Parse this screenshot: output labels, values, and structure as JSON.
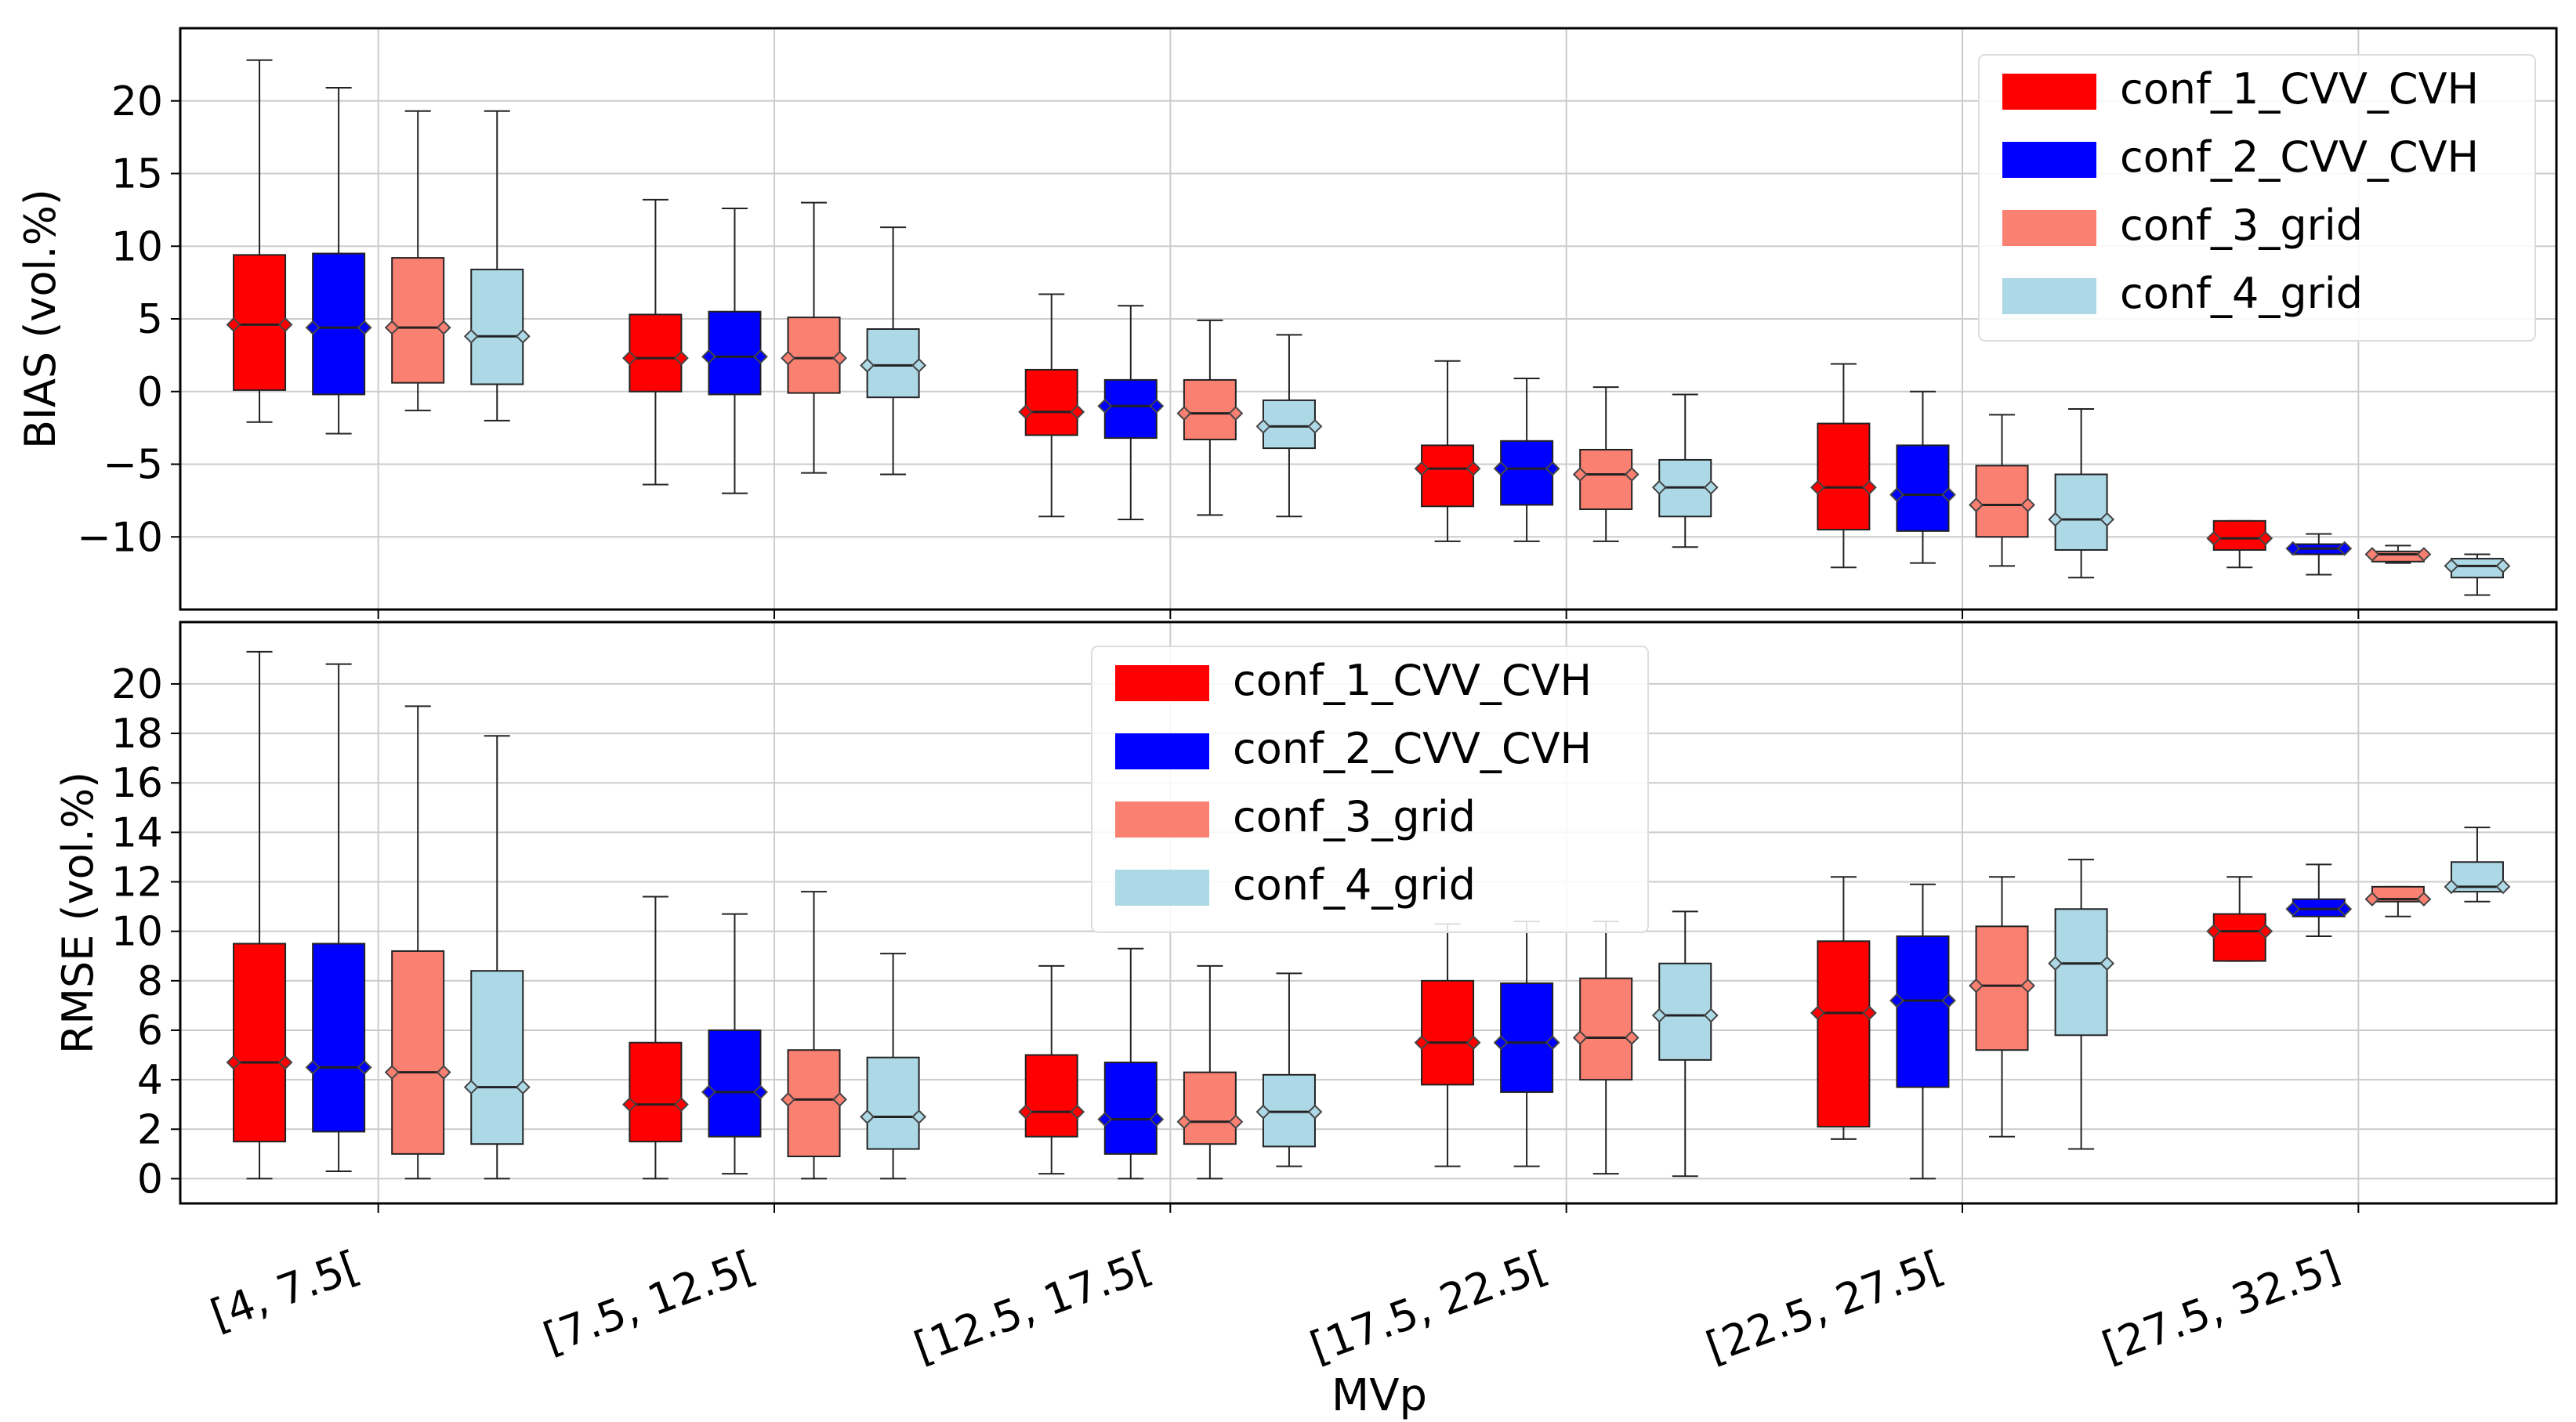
{
  "chart_data": [
    {
      "type": "boxplot",
      "panel": "top",
      "ylabel": "BIAS (vol.%)",
      "ylim": [
        -15,
        25
      ],
      "yticks": [
        -10,
        -5,
        0,
        5,
        10,
        15,
        20
      ],
      "grid": true,
      "legend_position": "top-right",
      "categories": [
        "[4, 7.5[",
        "[7.5, 12.5[",
        "[12.5, 17.5[",
        "[17.5, 22.5[",
        "[22.5, 27.5[",
        "[27.5, 32.5]"
      ],
      "series": [
        {
          "name": "conf_1_CVV_CVH",
          "color": "#ff0000",
          "boxes": [
            {
              "whislo": -2.1,
              "q1": 0.1,
              "med": 4.6,
              "q3": 9.4,
              "whishi": 22.8
            },
            {
              "whislo": -6.4,
              "q1": 0.0,
              "med": 2.3,
              "q3": 5.3,
              "whishi": 13.2
            },
            {
              "whislo": -8.6,
              "q1": -3.0,
              "med": -1.4,
              "q3": 1.5,
              "whishi": 6.7
            },
            {
              "whislo": -10.3,
              "q1": -7.9,
              "med": -5.3,
              "q3": -3.7,
              "whishi": 2.1
            },
            {
              "whislo": -12.1,
              "q1": -9.5,
              "med": -6.6,
              "q3": -2.2,
              "whishi": 1.9
            },
            {
              "whislo": -12.1,
              "q1": -10.9,
              "med": -10.1,
              "q3": -8.9,
              "whishi": -8.9
            }
          ]
        },
        {
          "name": "conf_2_CVV_CVH",
          "color": "#0000ff",
          "boxes": [
            {
              "whislo": -2.9,
              "q1": -0.2,
              "med": 4.4,
              "q3": 9.5,
              "whishi": 20.9
            },
            {
              "whislo": -7.0,
              "q1": -0.2,
              "med": 2.4,
              "q3": 5.5,
              "whishi": 12.6
            },
            {
              "whislo": -8.8,
              "q1": -3.2,
              "med": -1.0,
              "q3": 0.8,
              "whishi": 5.9
            },
            {
              "whislo": -10.3,
              "q1": -7.8,
              "med": -5.3,
              "q3": -3.4,
              "whishi": 0.9
            },
            {
              "whislo": -11.8,
              "q1": -9.6,
              "med": -7.1,
              "q3": -3.7,
              "whishi": 0.0
            },
            {
              "whislo": -12.6,
              "q1": -11.2,
              "med": -10.8,
              "q3": -10.5,
              "whishi": -9.8
            }
          ]
        },
        {
          "name": "conf_3_grid",
          "color": "#fa8072",
          "boxes": [
            {
              "whislo": -1.3,
              "q1": 0.6,
              "med": 4.4,
              "q3": 9.2,
              "whishi": 19.3
            },
            {
              "whislo": -5.6,
              "q1": -0.1,
              "med": 2.3,
              "q3": 5.1,
              "whishi": 13.0
            },
            {
              "whislo": -8.5,
              "q1": -3.3,
              "med": -1.5,
              "q3": 0.8,
              "whishi": 4.9
            },
            {
              "whislo": -10.3,
              "q1": -8.1,
              "med": -5.7,
              "q3": -4.0,
              "whishi": 0.3
            },
            {
              "whislo": -12.0,
              "q1": -10.0,
              "med": -7.8,
              "q3": -5.1,
              "whishi": -1.6
            },
            {
              "whislo": -11.8,
              "q1": -11.7,
              "med": -11.2,
              "q3": -11.0,
              "whishi": -10.6
            }
          ]
        },
        {
          "name": "conf_4_grid",
          "color": "#add8e6",
          "boxes": [
            {
              "whislo": -2.0,
              "q1": 0.5,
              "med": 3.8,
              "q3": 8.4,
              "whishi": 19.3
            },
            {
              "whislo": -5.7,
              "q1": -0.4,
              "med": 1.8,
              "q3": 4.3,
              "whishi": 11.3
            },
            {
              "whislo": -8.6,
              "q1": -3.9,
              "med": -2.4,
              "q3": -0.6,
              "whishi": 3.9
            },
            {
              "whislo": -10.7,
              "q1": -8.6,
              "med": -6.6,
              "q3": -4.7,
              "whishi": -0.2
            },
            {
              "whislo": -12.8,
              "q1": -10.9,
              "med": -8.8,
              "q3": -5.7,
              "whishi": -1.2
            },
            {
              "whislo": -14.0,
              "q1": -12.8,
              "med": -12.0,
              "q3": -11.5,
              "whishi": -11.2
            }
          ]
        }
      ]
    },
    {
      "type": "boxplot",
      "panel": "bottom",
      "ylabel": "RMSE (vol.%)",
      "xlabel": "MVp",
      "ylim": [
        -1,
        22.5
      ],
      "yticks": [
        0,
        2,
        4,
        6,
        8,
        10,
        12,
        14,
        16,
        18,
        20
      ],
      "grid": true,
      "legend_position": "top-center",
      "categories": [
        "[4, 7.5[",
        "[7.5, 12.5[",
        "[12.5, 17.5[",
        "[17.5, 22.5[",
        "[22.5, 27.5[",
        "[27.5, 32.5]"
      ],
      "series": [
        {
          "name": "conf_1_CVV_CVH",
          "color": "#ff0000",
          "boxes": [
            {
              "whislo": 0.0,
              "q1": 1.5,
              "med": 4.7,
              "q3": 9.5,
              "whishi": 21.3
            },
            {
              "whislo": 0.0,
              "q1": 1.5,
              "med": 3.0,
              "q3": 5.5,
              "whishi": 11.4
            },
            {
              "whislo": 0.2,
              "q1": 1.7,
              "med": 2.7,
              "q3": 5.0,
              "whishi": 8.6
            },
            {
              "whislo": 0.5,
              "q1": 3.8,
              "med": 5.5,
              "q3": 8.0,
              "whishi": 10.3
            },
            {
              "whislo": 1.6,
              "q1": 2.1,
              "med": 6.7,
              "q3": 9.6,
              "whishi": 12.2
            },
            {
              "whislo": 8.8,
              "q1": 8.8,
              "med": 10.0,
              "q3": 10.7,
              "whishi": 12.2
            }
          ]
        },
        {
          "name": "conf_2_CVV_CVH",
          "color": "#0000ff",
          "boxes": [
            {
              "whislo": 0.3,
              "q1": 1.9,
              "med": 4.5,
              "q3": 9.5,
              "whishi": 20.8
            },
            {
              "whislo": 0.2,
              "q1": 1.7,
              "med": 3.5,
              "q3": 6.0,
              "whishi": 10.7
            },
            {
              "whislo": 0.0,
              "q1": 1.0,
              "med": 2.4,
              "q3": 4.7,
              "whishi": 9.3
            },
            {
              "whislo": 0.5,
              "q1": 3.5,
              "med": 5.5,
              "q3": 7.9,
              "whishi": 10.4
            },
            {
              "whislo": 0.0,
              "q1": 3.7,
              "med": 7.2,
              "q3": 9.8,
              "whishi": 11.9
            },
            {
              "whislo": 9.8,
              "q1": 10.6,
              "med": 10.9,
              "q3": 11.3,
              "whishi": 12.7
            }
          ]
        },
        {
          "name": "conf_3_grid",
          "color": "#fa8072",
          "boxes": [
            {
              "whislo": 0.0,
              "q1": 1.0,
              "med": 4.3,
              "q3": 9.2,
              "whishi": 19.1
            },
            {
              "whislo": 0.0,
              "q1": 0.9,
              "med": 3.2,
              "q3": 5.2,
              "whishi": 11.6
            },
            {
              "whislo": 0.0,
              "q1": 1.4,
              "med": 2.3,
              "q3": 4.3,
              "whishi": 8.6
            },
            {
              "whislo": 0.2,
              "q1": 4.0,
              "med": 5.7,
              "q3": 8.1,
              "whishi": 10.4
            },
            {
              "whislo": 1.7,
              "q1": 5.2,
              "med": 7.8,
              "q3": 10.2,
              "whishi": 12.2
            },
            {
              "whislo": 10.6,
              "q1": 11.2,
              "med": 11.3,
              "q3": 11.8,
              "whishi": 11.8
            }
          ]
        },
        {
          "name": "conf_4_grid",
          "color": "#add8e6",
          "boxes": [
            {
              "whislo": 0.0,
              "q1": 1.4,
              "med": 3.7,
              "q3": 8.4,
              "whishi": 17.9
            },
            {
              "whislo": 0.0,
              "q1": 1.2,
              "med": 2.5,
              "q3": 4.9,
              "whishi": 9.1
            },
            {
              "whislo": 0.5,
              "q1": 1.3,
              "med": 2.7,
              "q3": 4.2,
              "whishi": 8.3
            },
            {
              "whislo": 0.1,
              "q1": 4.8,
              "med": 6.6,
              "q3": 8.7,
              "whishi": 10.8
            },
            {
              "whislo": 1.2,
              "q1": 5.8,
              "med": 8.7,
              "q3": 10.9,
              "whishi": 12.9
            },
            {
              "whislo": 11.2,
              "q1": 11.6,
              "med": 11.8,
              "q3": 12.8,
              "whishi": 14.2
            }
          ]
        }
      ]
    }
  ]
}
